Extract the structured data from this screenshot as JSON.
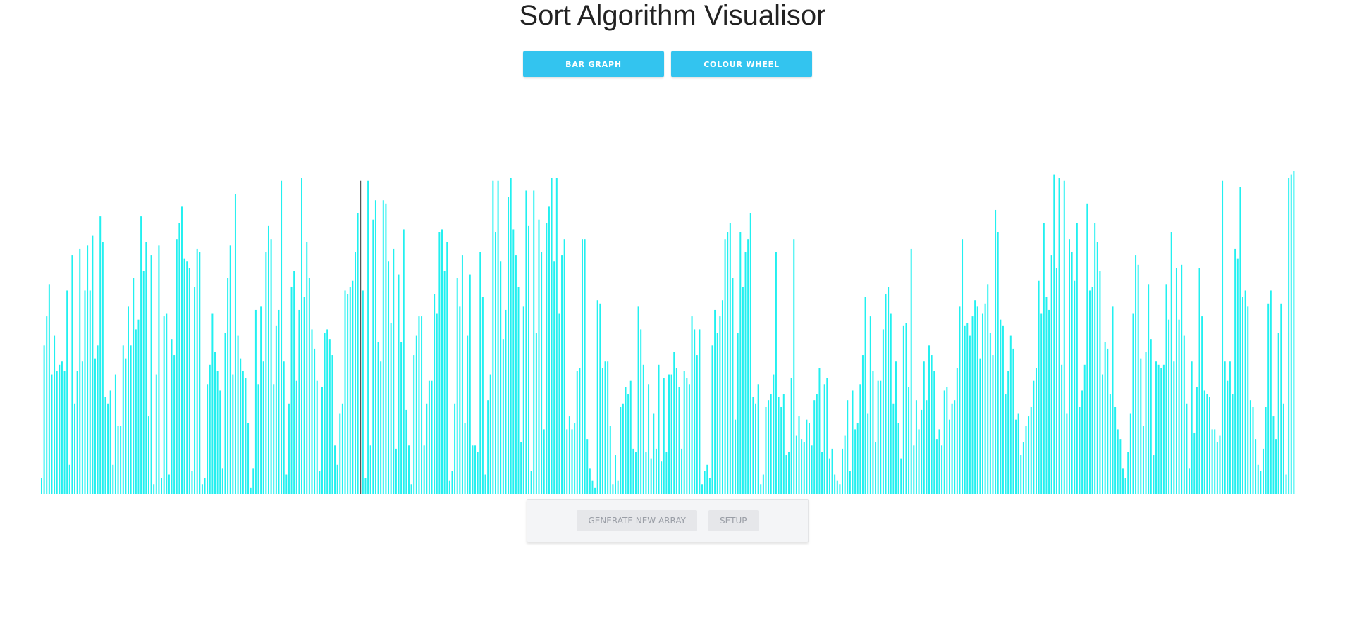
{
  "title": "Sort Algorithm Visualisor",
  "view_toggle": {
    "bar_graph_label": "BAR GRAPH",
    "colour_wheel_label": "COLOUR WHEEL"
  },
  "controls": {
    "generate_label": "GENERATE NEW ARRAY",
    "setup_label": "SETUP"
  },
  "colors": {
    "bar": "#22f0f0",
    "active_bar": "#555555",
    "button": "#33c4ef"
  },
  "chart_data": {
    "type": "bar",
    "active_index": 125,
    "ylim": [
      0,
      100
    ],
    "values": [
      5,
      46,
      55,
      65,
      37,
      49,
      38,
      40,
      41,
      38,
      63,
      9,
      74,
      28,
      38,
      76,
      41,
      63,
      77,
      63,
      80,
      42,
      46,
      86,
      78,
      30,
      28,
      32,
      9,
      37,
      21,
      21,
      46,
      42,
      58,
      46,
      67,
      51,
      54,
      86,
      69,
      78,
      24,
      74,
      3,
      37,
      77,
      5,
      55,
      56,
      6,
      48,
      43,
      79,
      84,
      89,
      73,
      72,
      70,
      7,
      64,
      76,
      75,
      3,
      5,
      34,
      40,
      56,
      44,
      38,
      32,
      8,
      50,
      67,
      77,
      37,
      93,
      49,
      42,
      38,
      36,
      22,
      2,
      8,
      57,
      34,
      58,
      41,
      75,
      83,
      79,
      34,
      52,
      57,
      97,
      41,
      6,
      28,
      64,
      69,
      35,
      57,
      98,
      61,
      78,
      67,
      51,
      45,
      35,
      7,
      33,
      50,
      51,
      48,
      43,
      15,
      9,
      25,
      28,
      63,
      62,
      64,
      66,
      75,
      87,
      97,
      63,
      5,
      97,
      15,
      85,
      91,
      47,
      41,
      91,
      90,
      72,
      53,
      76,
      14,
      68,
      47,
      82,
      26,
      15,
      3,
      43,
      49,
      55,
      55,
      15,
      28,
      35,
      35,
      62,
      56,
      81,
      82,
      69,
      78,
      4,
      7,
      28,
      67,
      58,
      74,
      22,
      49,
      68,
      15,
      15,
      13,
      75,
      61,
      6,
      29,
      37,
      97,
      81,
      97,
      72,
      48,
      57,
      92,
      98,
      82,
      74,
      64,
      16,
      58,
      94,
      83,
      7,
      94,
      50,
      85,
      75,
      20,
      84,
      89,
      98,
      72,
      98,
      56,
      74,
      79,
      20,
      24,
      20,
      22,
      38,
      39,
      79,
      79,
      17,
      8,
      4,
      2,
      60,
      59,
      39,
      41,
      41,
      21,
      3,
      12,
      4,
      27,
      28,
      33,
      31,
      35,
      14,
      13,
      58,
      51,
      40,
      13,
      34,
      11,
      25,
      14,
      40,
      10,
      36,
      13,
      37,
      37,
      44,
      39,
      33,
      14,
      38,
      36,
      34,
      55,
      51,
      43,
      51,
      3,
      7,
      9,
      5,
      46,
      57,
      50,
      55,
      60,
      79,
      81,
      84,
      67,
      23,
      50,
      81,
      64,
      75,
      79,
      87,
      30,
      28,
      34,
      3,
      6,
      27,
      29,
      31,
      37,
      75,
      30,
      27,
      31,
      12,
      13,
      36,
      79,
      18,
      24,
      17,
      16,
      23,
      22,
      15,
      29,
      31,
      39,
      13,
      34,
      36,
      11,
      14,
      6,
      4,
      3,
      14,
      18,
      29,
      7,
      32,
      20,
      22,
      34,
      43,
      61,
      25,
      55,
      38,
      16,
      35,
      35,
      51,
      62,
      64,
      56,
      28,
      41,
      22,
      11,
      52,
      53,
      33,
      76,
      15,
      29,
      20,
      26,
      41,
      29,
      46,
      43,
      38,
      17,
      20,
      15,
      32,
      33,
      23,
      28,
      29,
      39,
      58,
      79,
      52,
      53,
      49,
      55,
      60,
      58,
      42,
      56,
      59,
      65,
      50,
      43,
      88,
      81,
      54,
      52,
      31,
      38,
      49,
      45,
      23,
      25,
      12,
      16,
      21,
      24,
      27,
      35,
      39,
      66,
      56,
      84,
      61,
      57,
      74,
      99,
      70,
      98,
      40,
      97,
      25,
      79,
      75,
      66,
      84,
      27,
      32,
      40,
      90,
      63,
      64,
      84,
      78,
      69,
      37,
      47,
      45,
      31,
      58,
      27,
      20,
      17,
      8,
      5,
      13,
      25,
      56,
      74,
      71,
      42,
      21,
      44,
      65,
      48,
      12,
      41,
      40,
      39,
      40,
      65,
      54,
      81,
      41,
      70,
      54,
      71,
      49,
      28,
      8,
      41,
      19,
      33,
      70,
      55,
      32,
      31,
      30,
      20,
      20,
      16,
      18,
      97,
      41,
      35,
      41,
      31,
      76,
      73,
      95,
      61,
      63,
      58,
      29,
      27,
      17,
      9,
      7,
      14,
      27,
      59,
      63,
      24,
      17,
      50,
      59,
      28,
      6,
      98,
      99,
      100
    ]
  }
}
